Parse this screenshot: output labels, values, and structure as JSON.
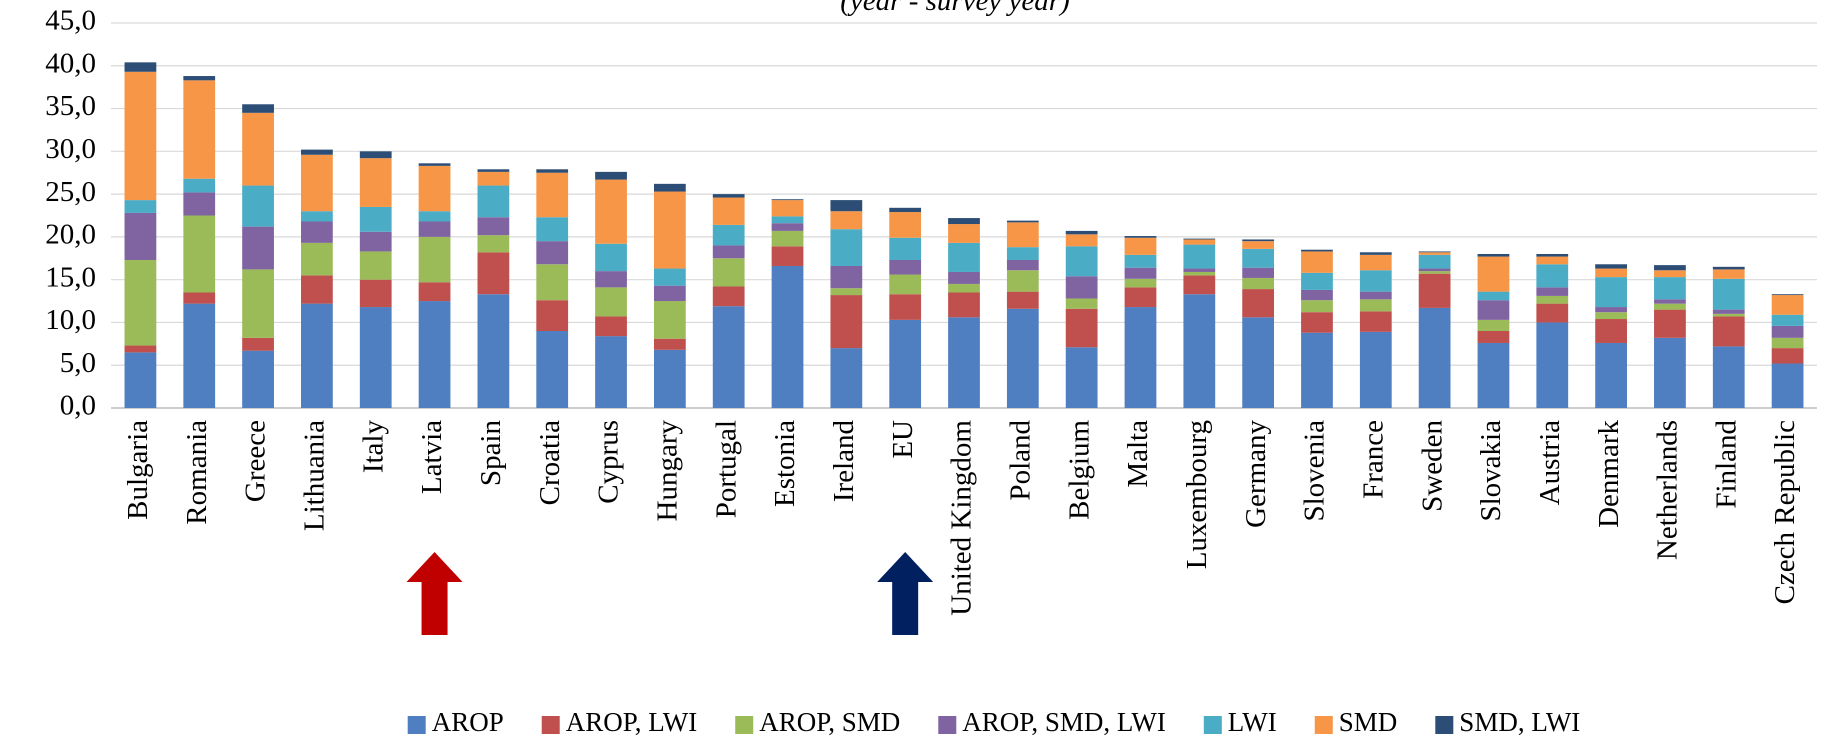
{
  "chart_data": {
    "type": "stacked-bar",
    "subtitle": "(year - survey year)",
    "categories": [
      "Bulgaria",
      "Romania",
      "Greece",
      "Lithuania",
      "Italy",
      "Latvia",
      "Spain",
      "Croatia",
      "Cyprus",
      "Hungary",
      "Portugal",
      "Estonia",
      "Ireland",
      "EU",
      "United Kingdom",
      "Poland",
      "Belgium",
      "Malta",
      "Luxembourg",
      "Germany",
      "Slovenia",
      "France",
      "Sweden",
      "Slovakia",
      "Austria",
      "Denmark",
      "Netherlands",
      "Finland",
      "Czech Republic"
    ],
    "series": [
      {
        "name": "AROP",
        "color": "#4f7fc0",
        "values": [
          6.5,
          12.2,
          6.7,
          12.2,
          11.8,
          12.5,
          13.3,
          9.0,
          8.4,
          6.8,
          11.9,
          16.6,
          7.0,
          10.3,
          10.6,
          11.6,
          7.1,
          11.8,
          13.3,
          10.6,
          8.8,
          8.9,
          11.7,
          7.6,
          10.0,
          7.6,
          8.2,
          7.2,
          5.2
        ]
      },
      {
        "name": "AROP, LWI",
        "color": "#c0504d",
        "values": [
          0.8,
          1.3,
          1.5,
          3.3,
          3.2,
          2.2,
          4.9,
          3.6,
          2.3,
          1.3,
          2.3,
          2.3,
          6.2,
          3.0,
          2.9,
          2.0,
          4.5,
          2.3,
          2.2,
          3.3,
          2.4,
          2.4,
          4.0,
          1.4,
          2.2,
          2.8,
          3.3,
          3.5,
          1.8
        ]
      },
      {
        "name": "AROP, SMD",
        "color": "#9bbb59",
        "values": [
          10.0,
          9.0,
          8.0,
          3.8,
          3.3,
          5.3,
          2.0,
          4.2,
          3.4,
          4.4,
          3.3,
          1.8,
          0.8,
          2.3,
          1.0,
          2.5,
          1.2,
          1.0,
          0.4,
          1.3,
          1.4,
          1.4,
          0.3,
          1.3,
          0.9,
          0.8,
          0.7,
          0.3,
          1.2
        ]
      },
      {
        "name": "AROP, SMD, LWI",
        "color": "#8064a2",
        "values": [
          5.5,
          2.7,
          5.0,
          2.5,
          2.3,
          1.8,
          2.1,
          2.7,
          1.9,
          1.8,
          1.5,
          0.9,
          2.6,
          1.7,
          1.4,
          1.2,
          2.6,
          1.3,
          0.4,
          1.2,
          1.2,
          0.9,
          0.3,
          2.3,
          1.0,
          0.6,
          0.5,
          0.5,
          1.4
        ]
      },
      {
        "name": "LWI",
        "color": "#4bacc6",
        "values": [
          1.5,
          1.6,
          4.8,
          1.2,
          2.9,
          1.2,
          3.7,
          2.8,
          3.2,
          2.0,
          2.4,
          0.8,
          4.3,
          2.6,
          3.4,
          1.5,
          3.5,
          1.5,
          2.8,
          2.2,
          2.0,
          2.5,
          1.6,
          1.0,
          2.7,
          3.5,
          2.6,
          3.6,
          1.3
        ]
      },
      {
        "name": "SMD",
        "color": "#f79646",
        "values": [
          15.0,
          11.5,
          8.5,
          6.6,
          5.7,
          5.3,
          1.6,
          5.2,
          7.5,
          9.0,
          3.2,
          1.9,
          2.1,
          3.0,
          2.2,
          2.9,
          1.4,
          2.0,
          0.6,
          0.9,
          2.5,
          1.8,
          0.3,
          4.1,
          0.9,
          1.0,
          0.8,
          1.1,
          2.3
        ]
      },
      {
        "name": "SMD, LWI",
        "color": "#2c4d75",
        "values": [
          1.1,
          0.5,
          1.0,
          0.6,
          0.8,
          0.3,
          0.3,
          0.4,
          0.9,
          0.9,
          0.4,
          0.1,
          1.3,
          0.5,
          0.7,
          0.2,
          0.4,
          0.2,
          0.1,
          0.2,
          0.2,
          0.3,
          0.1,
          0.3,
          0.3,
          0.5,
          0.6,
          0.3,
          0.1
        ]
      }
    ],
    "ylim": [
      0,
      45
    ],
    "yticks": [
      {
        "value": 0,
        "label": "0,0"
      },
      {
        "value": 5,
        "label": "5,0"
      },
      {
        "value": 10,
        "label": "10,0"
      },
      {
        "value": 15,
        "label": "15,0"
      },
      {
        "value": 20,
        "label": "20,0"
      },
      {
        "value": 25,
        "label": "25,0"
      },
      {
        "value": 30,
        "label": "30,0"
      },
      {
        "value": 35,
        "label": "35,0"
      },
      {
        "value": 40,
        "label": "40,0"
      },
      {
        "value": 45,
        "label": "45,0"
      }
    ],
    "grid": true,
    "legend": "bottom"
  }
}
